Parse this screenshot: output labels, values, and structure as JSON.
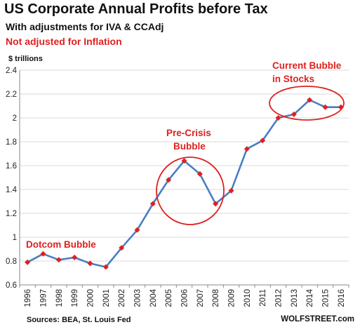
{
  "chart_data": {
    "type": "line",
    "title": "US Corporate Annual Profits before Tax",
    "subtitle": "With adjustments for IVA & CCAdj",
    "note": "Not adjusted for Inflation",
    "ylabel": "$ trillions",
    "xlabel": "",
    "ylim": [
      0.6,
      2.4
    ],
    "yticks": [
      "0.6",
      "0.8",
      "1",
      "1.2",
      "1.4",
      "1.6",
      "1.8",
      "2",
      "2.2",
      "2.4"
    ],
    "grid": true,
    "categories": [
      "1996",
      "1997",
      "1998",
      "1999",
      "2000",
      "2001",
      "2002",
      "2003",
      "2004",
      "2005",
      "2006",
      "2007",
      "2008",
      "2009",
      "2010",
      "2011",
      "2012",
      "2013",
      "2014",
      "2015",
      "2016"
    ],
    "series": [
      {
        "values": [
          0.79,
          0.86,
          0.81,
          0.83,
          0.78,
          0.75,
          0.91,
          1.06,
          1.28,
          1.48,
          1.64,
          1.53,
          1.28,
          1.39,
          1.74,
          1.81,
          2.0,
          2.03,
          2.15,
          2.09,
          2.09
        ],
        "color": "#4a7ec4",
        "marker_color": "#e0201e"
      }
    ],
    "annotations": [
      {
        "text": "Dotcom Bubble"
      },
      {
        "text": "Pre-Crisis"
      },
      {
        "text": "Bubble"
      },
      {
        "text": "Current Bubble"
      },
      {
        "text": "in Stocks"
      }
    ],
    "source": "Sources: BEA, St. Louis Fed",
    "brand": "WOLFSTREET.com"
  }
}
